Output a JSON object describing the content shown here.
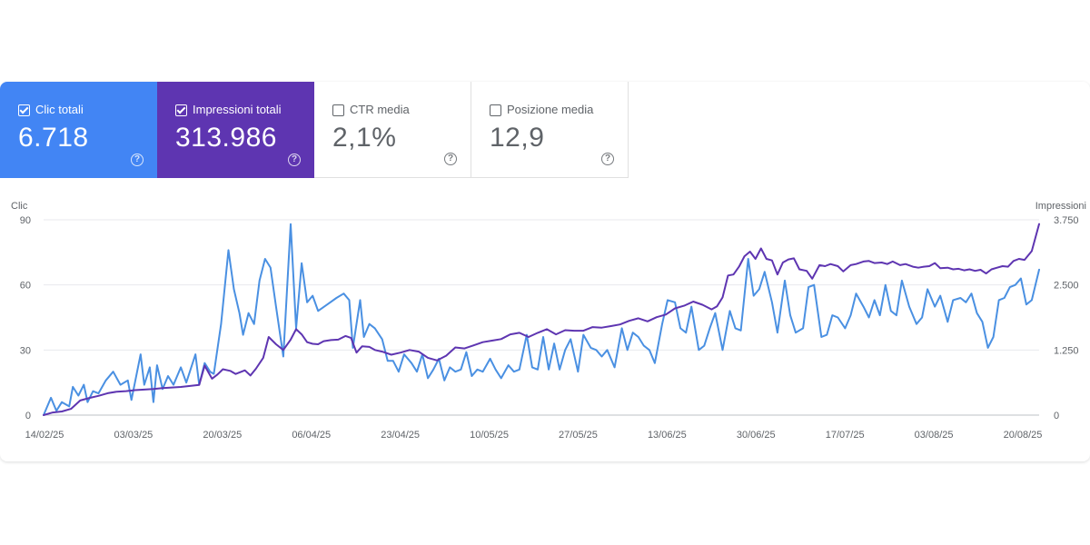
{
  "cards": [
    {
      "label": "Clic totali",
      "value": "6.718",
      "checked": true,
      "color": "#4285f4"
    },
    {
      "label": "Impressioni totali",
      "value": "313.986",
      "checked": true,
      "color": "#5e35b1"
    },
    {
      "label": "CTR media",
      "value": "2,1%",
      "checked": false,
      "color": "#ffffff"
    },
    {
      "label": "Posizione media",
      "value": "12,9",
      "checked": false,
      "color": "#ffffff"
    }
  ],
  "help_icon_glyph": "?",
  "chart_data": {
    "type": "line",
    "xlabel": "",
    "y_left_label": "Clic",
    "y_right_label": "Impressioni",
    "y_left_ticks": [
      "0",
      "30",
      "60",
      "90"
    ],
    "y_right_ticks": [
      "0",
      "1.250",
      "2.500",
      "3.750"
    ],
    "y_left_range": [
      0,
      90
    ],
    "y_right_range": [
      0,
      3750
    ],
    "x_tick_labels": [
      "14/02/25",
      "03/03/25",
      "20/03/25",
      "06/04/25",
      "23/04/25",
      "10/05/25",
      "27/05/25",
      "13/06/25",
      "30/06/25",
      "17/07/25",
      "03/08/25",
      "20/08/25"
    ],
    "grid": true,
    "series": [
      {
        "name": "Clic",
        "axis": "left",
        "color": "#4a90e2",
        "points": [
          [
            0,
            0
          ],
          [
            4,
            8
          ],
          [
            7,
            2
          ],
          [
            10,
            6
          ],
          [
            14,
            4
          ],
          [
            16,
            13
          ],
          [
            19,
            9
          ],
          [
            22,
            14
          ],
          [
            24,
            6
          ],
          [
            27,
            11
          ],
          [
            30,
            10
          ],
          [
            34,
            16
          ],
          [
            38,
            20
          ],
          [
            42,
            14
          ],
          [
            46,
            16
          ],
          [
            48,
            7
          ],
          [
            53,
            28
          ],
          [
            55,
            14
          ],
          [
            58,
            22
          ],
          [
            60,
            6
          ],
          [
            62,
            23
          ],
          [
            65,
            12
          ],
          [
            68,
            18
          ],
          [
            71,
            14
          ],
          [
            75,
            22
          ],
          [
            78,
            15
          ],
          [
            83,
            28
          ],
          [
            85,
            14
          ],
          [
            88,
            24
          ],
          [
            91,
            20
          ],
          [
            93,
            19
          ],
          [
            97,
            42
          ],
          [
            101,
            76
          ],
          [
            104,
            58
          ],
          [
            107,
            47
          ],
          [
            109,
            37
          ],
          [
            112,
            47
          ],
          [
            115,
            42
          ],
          [
            118,
            62
          ],
          [
            121,
            72
          ],
          [
            124,
            68
          ],
          [
            127,
            50
          ],
          [
            131,
            27
          ],
          [
            135,
            88
          ],
          [
            138,
            40
          ],
          [
            141,
            70
          ],
          [
            144,
            52
          ],
          [
            147,
            55
          ],
          [
            150,
            48
          ],
          [
            155,
            51
          ],
          [
            160,
            54
          ],
          [
            164,
            56
          ],
          [
            167,
            53
          ],
          [
            169,
            31
          ],
          [
            173,
            53
          ],
          [
            175,
            36
          ],
          [
            178,
            42
          ],
          [
            181,
            40
          ],
          [
            185,
            35
          ],
          [
            188,
            25
          ],
          [
            191,
            25
          ],
          [
            194,
            20
          ],
          [
            197,
            28
          ],
          [
            201,
            24
          ],
          [
            204,
            20
          ],
          [
            207,
            28
          ],
          [
            210,
            17
          ],
          [
            213,
            21
          ],
          [
            216,
            26
          ],
          [
            219,
            16
          ],
          [
            222,
            22
          ],
          [
            225,
            20
          ],
          [
            228,
            21
          ],
          [
            231,
            29
          ],
          [
            234,
            18
          ],
          [
            237,
            21
          ],
          [
            240,
            20
          ],
          [
            244,
            26
          ],
          [
            247,
            21
          ],
          [
            250,
            17
          ],
          [
            254,
            23
          ],
          [
            257,
            20
          ],
          [
            260,
            21
          ],
          [
            264,
            37
          ],
          [
            267,
            22
          ],
          [
            270,
            21
          ],
          [
            273,
            36
          ],
          [
            276,
            21
          ],
          [
            279,
            33
          ],
          [
            282,
            21
          ],
          [
            285,
            30
          ],
          [
            288,
            35
          ],
          [
            292,
            20
          ],
          [
            295,
            37
          ],
          [
            299,
            31
          ],
          [
            302,
            30
          ],
          [
            305,
            27
          ],
          [
            308,
            30
          ],
          [
            312,
            22
          ],
          [
            316,
            40
          ],
          [
            319,
            30
          ],
          [
            322,
            38
          ],
          [
            325,
            36
          ],
          [
            328,
            32
          ],
          [
            331,
            30
          ],
          [
            334,
            24
          ],
          [
            338,
            42
          ],
          [
            341,
            53
          ],
          [
            345,
            52
          ],
          [
            348,
            40
          ],
          [
            351,
            38
          ],
          [
            354,
            50
          ],
          [
            358,
            30
          ],
          [
            361,
            32
          ],
          [
            364,
            40
          ],
          [
            367,
            47
          ],
          [
            371,
            30
          ],
          [
            375,
            48
          ],
          [
            378,
            40
          ],
          [
            381,
            39
          ],
          [
            385,
            72
          ],
          [
            388,
            55
          ],
          [
            391,
            58
          ],
          [
            394,
            66
          ],
          [
            398,
            52
          ],
          [
            401,
            38
          ],
          [
            405,
            62
          ],
          [
            408,
            46
          ],
          [
            411,
            38
          ],
          [
            415,
            40
          ],
          [
            418,
            59
          ],
          [
            421,
            60
          ],
          [
            425,
            36
          ],
          [
            428,
            37
          ],
          [
            431,
            46
          ],
          [
            434,
            45
          ],
          [
            438,
            40
          ],
          [
            441,
            46
          ],
          [
            444,
            56
          ],
          [
            448,
            50
          ],
          [
            451,
            45
          ],
          [
            454,
            53
          ],
          [
            457,
            46
          ],
          [
            460,
            60
          ],
          [
            463,
            48
          ],
          [
            466,
            46
          ],
          [
            469,
            62
          ],
          [
            473,
            50
          ],
          [
            477,
            42
          ],
          [
            480,
            45
          ],
          [
            483,
            58
          ],
          [
            487,
            50
          ],
          [
            490,
            55
          ],
          [
            494,
            43
          ],
          [
            497,
            53
          ],
          [
            501,
            54
          ],
          [
            504,
            52
          ],
          [
            507,
            56
          ],
          [
            510,
            47
          ],
          [
            513,
            43
          ],
          [
            516,
            31
          ],
          [
            519,
            36
          ],
          [
            522,
            53
          ],
          [
            525,
            54
          ],
          [
            528,
            59
          ],
          [
            531,
            60
          ],
          [
            534,
            63
          ],
          [
            537,
            51
          ],
          [
            540,
            53
          ],
          [
            544,
            67
          ]
        ]
      },
      {
        "name": "Impressioni",
        "axis": "right",
        "color": "#5e35b1",
        "points": [
          [
            0,
            0
          ],
          [
            5,
            50
          ],
          [
            10,
            70
          ],
          [
            15,
            120
          ],
          [
            20,
            280
          ],
          [
            25,
            330
          ],
          [
            30,
            370
          ],
          [
            35,
            420
          ],
          [
            40,
            450
          ],
          [
            45,
            460
          ],
          [
            50,
            480
          ],
          [
            55,
            490
          ],
          [
            60,
            500
          ],
          [
            65,
            520
          ],
          [
            70,
            530
          ],
          [
            75,
            540
          ],
          [
            80,
            560
          ],
          [
            85,
            580
          ],
          [
            88,
            950
          ],
          [
            92,
            700
          ],
          [
            95,
            780
          ],
          [
            98,
            880
          ],
          [
            102,
            850
          ],
          [
            105,
            790
          ],
          [
            110,
            860
          ],
          [
            113,
            760
          ],
          [
            116,
            890
          ],
          [
            120,
            1100
          ],
          [
            123,
            1500
          ],
          [
            127,
            1360
          ],
          [
            131,
            1250
          ],
          [
            135,
            1450
          ],
          [
            138,
            1650
          ],
          [
            141,
            1550
          ],
          [
            144,
            1400
          ],
          [
            147,
            1370
          ],
          [
            150,
            1360
          ],
          [
            153,
            1420
          ],
          [
            157,
            1440
          ],
          [
            161,
            1450
          ],
          [
            165,
            1520
          ],
          [
            168,
            1480
          ],
          [
            171,
            1200
          ],
          [
            174,
            1320
          ],
          [
            178,
            1310
          ],
          [
            181,
            1250
          ],
          [
            185,
            1220
          ],
          [
            190,
            1160
          ],
          [
            195,
            1200
          ],
          [
            200,
            1250
          ],
          [
            205,
            1220
          ],
          [
            210,
            1100
          ],
          [
            215,
            1050
          ],
          [
            220,
            1140
          ],
          [
            225,
            1300
          ],
          [
            230,
            1280
          ],
          [
            235,
            1340
          ],
          [
            240,
            1400
          ],
          [
            245,
            1430
          ],
          [
            250,
            1460
          ],
          [
            255,
            1550
          ],
          [
            260,
            1580
          ],
          [
            265,
            1500
          ],
          [
            270,
            1580
          ],
          [
            275,
            1650
          ],
          [
            280,
            1550
          ],
          [
            285,
            1630
          ],
          [
            290,
            1620
          ],
          [
            295,
            1620
          ],
          [
            300,
            1690
          ],
          [
            305,
            1680
          ],
          [
            310,
            1710
          ],
          [
            315,
            1740
          ],
          [
            320,
            1810
          ],
          [
            325,
            1860
          ],
          [
            330,
            1800
          ],
          [
            335,
            1880
          ],
          [
            340,
            1930
          ],
          [
            345,
            2050
          ],
          [
            350,
            2100
          ],
          [
            355,
            2180
          ],
          [
            360,
            2120
          ],
          [
            365,
            2030
          ],
          [
            368,
            2090
          ],
          [
            371,
            2260
          ],
          [
            374,
            2680
          ],
          [
            377,
            2700
          ],
          [
            380,
            2850
          ],
          [
            383,
            3050
          ],
          [
            386,
            3140
          ],
          [
            389,
            3000
          ],
          [
            392,
            3200
          ],
          [
            395,
            3000
          ],
          [
            398,
            2970
          ],
          [
            401,
            2700
          ],
          [
            404,
            2930
          ],
          [
            407,
            2990
          ],
          [
            410,
            3010
          ],
          [
            413,
            2800
          ],
          [
            417,
            2770
          ],
          [
            420,
            2620
          ],
          [
            424,
            2880
          ],
          [
            427,
            2860
          ],
          [
            430,
            2900
          ],
          [
            434,
            2860
          ],
          [
            437,
            2760
          ],
          [
            441,
            2880
          ],
          [
            444,
            2900
          ],
          [
            448,
            2950
          ],
          [
            451,
            2960
          ],
          [
            454,
            2920
          ],
          [
            458,
            2930
          ],
          [
            461,
            2900
          ],
          [
            464,
            2950
          ],
          [
            468,
            2880
          ],
          [
            471,
            2900
          ],
          [
            475,
            2850
          ],
          [
            478,
            2830
          ],
          [
            481,
            2850
          ],
          [
            484,
            2860
          ],
          [
            487,
            2920
          ],
          [
            490,
            2820
          ],
          [
            494,
            2830
          ],
          [
            497,
            2800
          ],
          [
            500,
            2810
          ],
          [
            503,
            2780
          ],
          [
            506,
            2800
          ],
          [
            509,
            2770
          ],
          [
            512,
            2790
          ],
          [
            515,
            2720
          ],
          [
            518,
            2800
          ],
          [
            521,
            2830
          ],
          [
            524,
            2860
          ],
          [
            527,
            2850
          ],
          [
            530,
            2960
          ],
          [
            533,
            3000
          ],
          [
            536,
            2980
          ],
          [
            540,
            3150
          ],
          [
            544,
            3670
          ]
        ]
      }
    ],
    "x_index_range": [
      0,
      544
    ]
  }
}
